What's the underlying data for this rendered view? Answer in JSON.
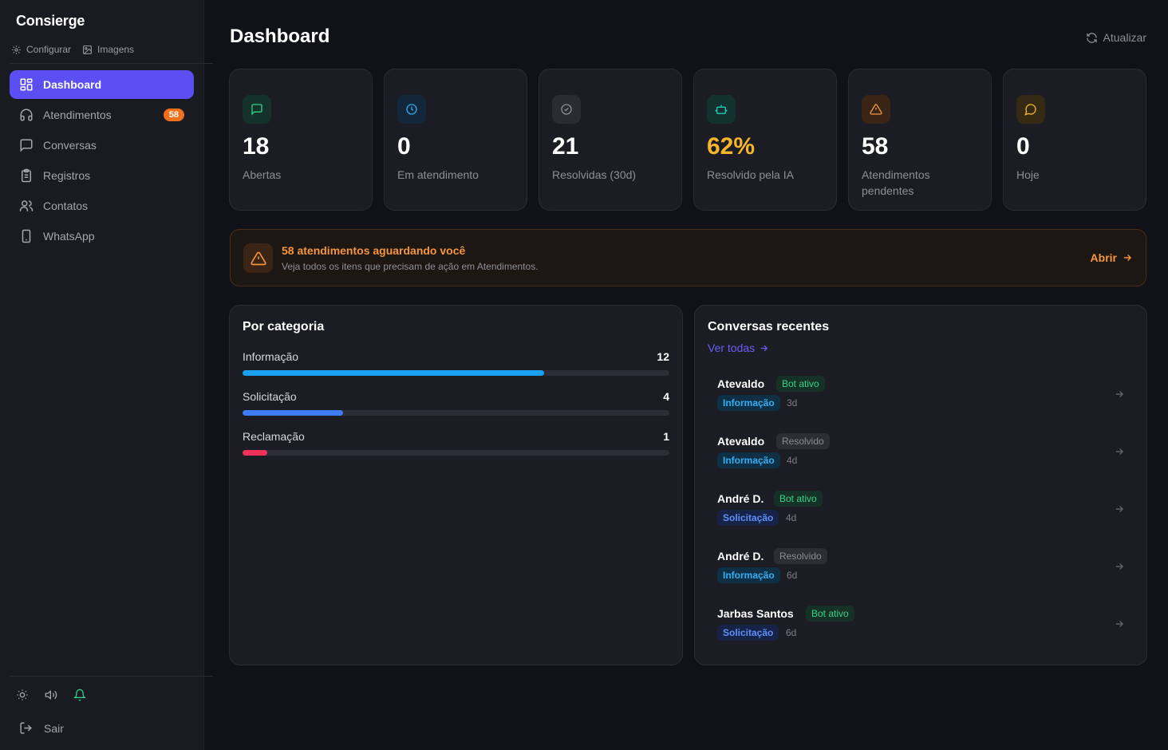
{
  "app": {
    "brand": "Consierge"
  },
  "sidebar": {
    "quick_links": [
      {
        "label": "Configurar",
        "icon": "gear-icon"
      },
      {
        "label": "Imagens",
        "icon": "image-icon"
      }
    ],
    "items": [
      {
        "label": "Dashboard",
        "icon": "dashboard-icon",
        "active": true
      },
      {
        "label": "Atendimentos",
        "icon": "headset-icon",
        "badge": "58"
      },
      {
        "label": "Conversas",
        "icon": "chat-icon"
      },
      {
        "label": "Registros",
        "icon": "clipboard-icon"
      },
      {
        "label": "Contatos",
        "icon": "users-icon"
      },
      {
        "label": "WhatsApp",
        "icon": "phone-icon"
      }
    ],
    "footer_icons": [
      "sun-icon",
      "speaker-icon",
      "bell-icon"
    ],
    "logout_label": "Sair"
  },
  "header": {
    "title": "Dashboard",
    "refresh_label": "Atualizar"
  },
  "stats": [
    {
      "value": "18",
      "label": "Abertas",
      "icon": "message-icon",
      "color": "#2fcf86"
    },
    {
      "value": "0",
      "label": "Em atendimento",
      "icon": "clock-icon",
      "color": "#2fa8f0"
    },
    {
      "value": "21",
      "label": "Resolvidas (30d)",
      "icon": "check-circle-icon",
      "color": "#8d8f98"
    },
    {
      "value": "62%",
      "label": "Resolvido pela IA",
      "icon": "robot-icon",
      "color": "#22c7b8",
      "value_color": "#f6b62b"
    },
    {
      "value": "58",
      "label": "Atendimentos pendentes",
      "icon": "warning-icon",
      "color": "#f5963e"
    },
    {
      "value": "0",
      "label": "Hoje",
      "icon": "bubble-icon",
      "color": "#f0b429"
    }
  ],
  "alert": {
    "title": "58 atendimentos aguardando você",
    "subtitle": "Veja todos os itens que precisam de ação em Atendimentos.",
    "action": "Abrir"
  },
  "categories": {
    "title": "Por categoria",
    "items": [
      {
        "label": "Informação",
        "value": "12",
        "fraction": 0.7059,
        "color": "#1aa0f0"
      },
      {
        "label": "Solicitação",
        "value": "4",
        "fraction": 0.2353,
        "color": "#3d7cf5"
      },
      {
        "label": "Reclamação",
        "value": "1",
        "fraction": 0.0588,
        "color": "#f0325a"
      }
    ]
  },
  "recent": {
    "title": "Conversas recentes",
    "see_all": "Ver todas",
    "items": [
      {
        "name": "Atevaldo",
        "status": "Bot ativo",
        "status_type": "bot",
        "category": "Informação",
        "cat_type": "info",
        "time": "3d"
      },
      {
        "name": "Atevaldo",
        "status": "Resolvido",
        "status_type": "res",
        "category": "Informação",
        "cat_type": "info",
        "time": "4d"
      },
      {
        "name": "André D.",
        "status": "Bot ativo",
        "status_type": "bot",
        "category": "Solicitação",
        "cat_type": "sol",
        "time": "4d"
      },
      {
        "name": "André D.",
        "status": "Resolvido",
        "status_type": "res",
        "category": "Informação",
        "cat_type": "info",
        "time": "6d"
      },
      {
        "name": "Jarbas Santos",
        "status": "Bot ativo",
        "status_type": "bot",
        "category": "Solicitação",
        "cat_type": "sol",
        "time": "6d"
      }
    ]
  }
}
